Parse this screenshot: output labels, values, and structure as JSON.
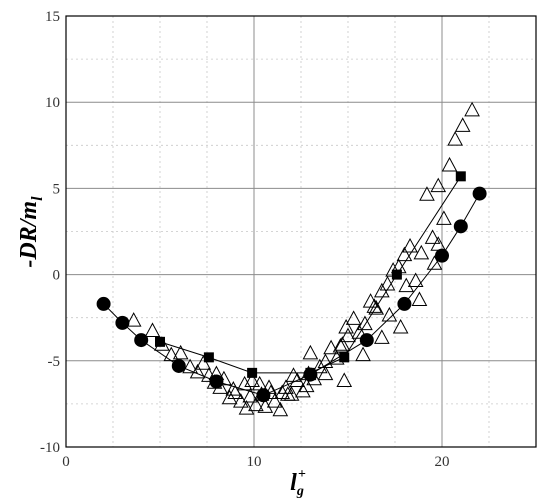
{
  "chart_data": {
    "type": "scatter",
    "xlabel": "l",
    "xlabel_sup": "+",
    "xlabel_sub": "g",
    "ylabel": "-DR/m",
    "ylabel_sub": "l",
    "xlim": [
      0,
      25
    ],
    "ylim": [
      -10,
      15
    ],
    "x_ticks": [
      0,
      10,
      20
    ],
    "y_ticks": [
      -10,
      -5,
      0,
      5,
      10,
      15
    ],
    "grid": {
      "major": true,
      "minor": true,
      "minor_x_step": 2.5,
      "minor_y_step": 2.5
    },
    "legend": "none",
    "series": [
      {
        "marker": "open-triangle",
        "connected": false,
        "x": [
          3.6,
          4.6,
          5.1,
          5.6,
          6.1,
          6.6,
          7.0,
          7.3,
          7.6,
          7.9,
          8.2,
          8.4,
          8.7,
          9.0,
          9.3,
          9.5,
          9.8,
          10.1,
          10.4,
          10.6,
          10.9,
          11.1,
          11.4,
          11.7,
          12.0,
          12.3,
          12.6,
          12.9,
          13.2,
          13.5,
          13.8,
          14.1,
          14.4,
          14.7,
          15.0,
          15.3,
          15.6,
          15.9,
          16.2,
          16.5,
          16.8,
          17.1,
          17.4,
          17.7,
          18.0,
          18.3,
          18.6,
          18.9,
          19.2,
          19.5,
          19.8,
          20.1,
          20.4,
          20.7,
          21.1,
          21.6,
          8.0,
          8.9,
          9.9,
          10.8,
          11.8,
          12.8,
          13.8,
          14.8,
          15.8,
          16.8,
          17.8,
          18.8,
          19.8,
          9.6,
          12.1,
          14.6,
          17.2,
          19.6,
          10.3,
          11.5,
          13.0,
          14.9,
          16.4,
          18.1
        ],
        "y": [
          -2.7,
          -3.3,
          -4.1,
          -4.7,
          -4.6,
          -5.4,
          -5.7,
          -5.2,
          -5.9,
          -6.3,
          -6.6,
          -6.1,
          -7.2,
          -6.9,
          -7.4,
          -6.4,
          -7.1,
          -7.6,
          -7.0,
          -7.7,
          -6.9,
          -7.4,
          -7.9,
          -6.6,
          -7.0,
          -6.2,
          -6.8,
          -5.8,
          -6.1,
          -5.4,
          -5.8,
          -4.3,
          -4.9,
          -4.1,
          -3.6,
          -2.6,
          -3.4,
          -2.9,
          -1.6,
          -2.0,
          -1.0,
          -0.6,
          0.2,
          0.4,
          1.1,
          1.6,
          -0.4,
          1.2,
          4.6,
          2.1,
          5.1,
          3.2,
          6.3,
          7.8,
          8.6,
          9.5,
          -5.8,
          -6.7,
          -6.2,
          -6.6,
          -7.0,
          -6.5,
          -5.1,
          -6.2,
          -4.7,
          -3.7,
          -3.1,
          -1.5,
          1.7,
          -7.8,
          -5.9,
          -4.2,
          -2.4,
          0.6,
          -6.4,
          -6.9,
          -4.6,
          -3.1,
          -1.9,
          -0.7
        ]
      },
      {
        "marker": "filled-square",
        "connected": true,
        "x": [
          5.0,
          7.6,
          9.9,
          13.0,
          14.8,
          17.6,
          21.0
        ],
        "y": [
          -3.9,
          -4.8,
          -5.7,
          -5.7,
          -4.8,
          0.0,
          5.7
        ]
      },
      {
        "marker": "filled-circle",
        "connected": true,
        "x": [
          2.0,
          3.0,
          4.0,
          6.0,
          8.0,
          10.5,
          13.0,
          16.0,
          18.0,
          20.0,
          21.0,
          22.0
        ],
        "y": [
          -1.7,
          -2.8,
          -3.8,
          -5.3,
          -6.2,
          -7.0,
          -5.8,
          -3.8,
          -1.7,
          1.1,
          2.8,
          4.7
        ]
      }
    ]
  }
}
